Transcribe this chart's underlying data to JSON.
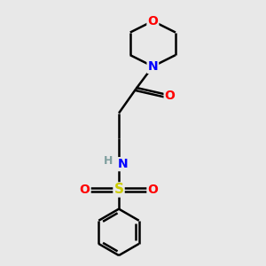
{
  "background_color": "#e8e8e8",
  "atom_colors": {
    "C": "#000000",
    "N": "#0000ff",
    "O": "#ff0000",
    "S": "#cccc00",
    "H": "#7f9f9f"
  },
  "bond_color": "#000000",
  "bond_width": 1.8
}
